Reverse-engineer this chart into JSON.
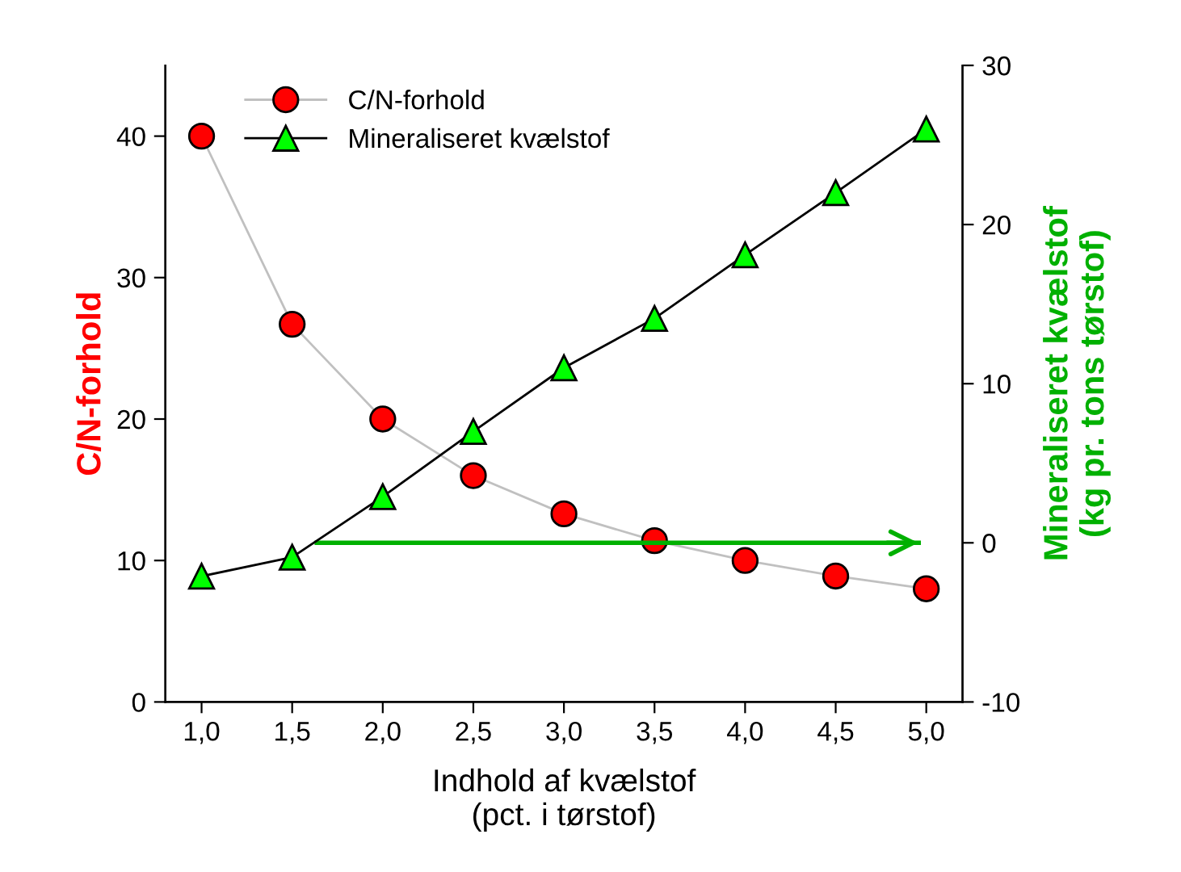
{
  "chart_data": {
    "type": "line",
    "xlabel": "Indhold af kvælstof\n(pct. i tørstof)",
    "ylabel": "C/N-forhold",
    "y2label": "Mineraliseret kvælstof\n(kg pr. tons tørstof)",
    "x": [
      1.0,
      1.5,
      2.0,
      2.5,
      3.0,
      3.5,
      4.0,
      4.5,
      5.0
    ],
    "series": [
      {
        "name": "C/N-forhold",
        "color": "#ff0000",
        "marker": "circle",
        "values": [
          40,
          26.7,
          20,
          16,
          13.3,
          11.4,
          10,
          8.9,
          8
        ]
      },
      {
        "name": "Mineraliseret kvælstof",
        "color": "#00ff00",
        "marker": "triangle",
        "axis": "y2",
        "values": [
          -2.1,
          -0.9,
          2.9,
          7,
          11,
          14.1,
          18.1,
          22,
          26
        ]
      }
    ],
    "xlim": [
      0.8,
      5.2
    ],
    "xticks": [
      {
        "value": 1.0,
        "label": "1,0"
      },
      {
        "value": 1.5,
        "label": "1,5"
      },
      {
        "value": 2.0,
        "label": "2,0"
      },
      {
        "value": 2.5,
        "label": "2,5"
      },
      {
        "value": 3.0,
        "label": "3,0"
      },
      {
        "value": 3.5,
        "label": "3,5"
      },
      {
        "value": 4.0,
        "label": "4,0"
      },
      {
        "value": 4.5,
        "label": "4,5"
      },
      {
        "value": 5.0,
        "label": "5,0"
      }
    ],
    "ylim": [
      0,
      45
    ],
    "yticks": [
      0,
      10,
      20,
      30,
      40
    ],
    "y2lim": [
      -10,
      30
    ],
    "y2ticks": [
      -10,
      0,
      10,
      20,
      30
    ],
    "ref_lines": [
      {
        "axis": "y2",
        "value": 0,
        "color": "#00b000"
      }
    ],
    "legend": "top left",
    "grid": false
  }
}
